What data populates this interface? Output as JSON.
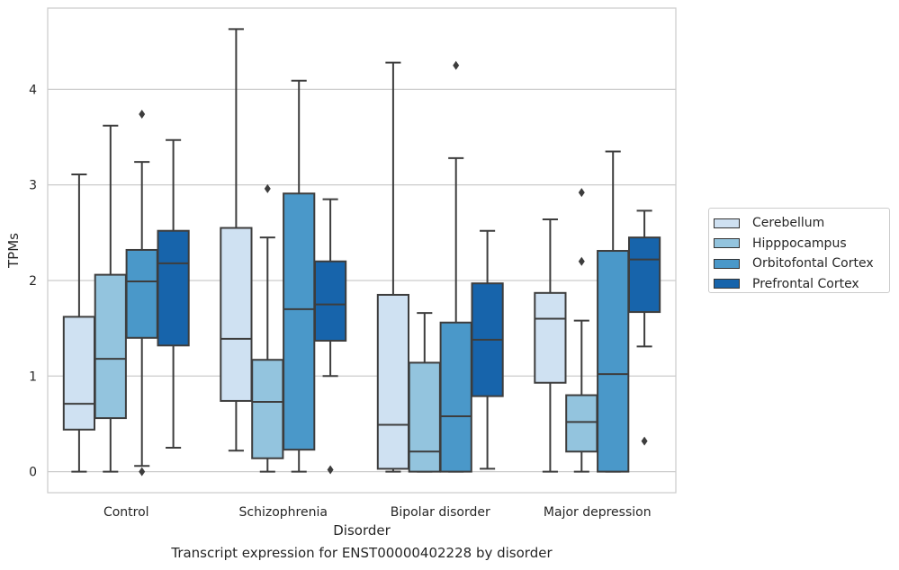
{
  "chart_data": {
    "type": "box",
    "xlabel": "Disorder",
    "ylabel": "TPMs",
    "ylim": [
      -0.22,
      4.85
    ],
    "yticks": [
      0,
      1,
      2,
      3,
      4
    ],
    "grid": "horizontal",
    "legend_position": "right",
    "categories": [
      "Control",
      "Schizophrenia",
      "Bipolar disorder",
      "Major depression"
    ],
    "series": [
      {
        "name": "Cerebellum",
        "color": "#cfe1f2",
        "boxes": [
          {
            "whisker_low": 0.0,
            "q1": 0.44,
            "median": 0.71,
            "q3": 1.62,
            "whisker_high": 3.11,
            "outliers": []
          },
          {
            "whisker_low": 0.22,
            "q1": 0.74,
            "median": 1.39,
            "q3": 2.55,
            "whisker_high": 4.63,
            "outliers": []
          },
          {
            "whisker_low": 0.0,
            "q1": 0.03,
            "median": 0.49,
            "q3": 1.85,
            "whisker_high": 4.28,
            "outliers": []
          },
          {
            "whisker_low": 0.0,
            "q1": 0.93,
            "median": 1.6,
            "q3": 1.87,
            "whisker_high": 2.64,
            "outliers": []
          }
        ]
      },
      {
        "name": "Hipppocampus",
        "color": "#93c4de",
        "boxes": [
          {
            "whisker_low": 0.0,
            "q1": 0.56,
            "median": 1.18,
            "q3": 2.06,
            "whisker_high": 3.62,
            "outliers": []
          },
          {
            "whisker_low": 0.0,
            "q1": 0.14,
            "median": 0.73,
            "q3": 1.17,
            "whisker_high": 2.45,
            "outliers": [
              2.96
            ]
          },
          {
            "whisker_low": 0.0,
            "q1": 0.0,
            "median": 0.21,
            "q3": 1.14,
            "whisker_high": 1.66,
            "outliers": []
          },
          {
            "whisker_low": 0.0,
            "q1": 0.21,
            "median": 0.52,
            "q3": 0.8,
            "whisker_high": 1.58,
            "outliers": [
              2.2,
              2.92
            ]
          }
        ]
      },
      {
        "name": "Orbitofontal Cortex",
        "color": "#4a98c9",
        "boxes": [
          {
            "whisker_low": 0.06,
            "q1": 1.4,
            "median": 1.99,
            "q3": 2.32,
            "whisker_high": 3.24,
            "outliers": [
              0.0,
              3.74
            ]
          },
          {
            "whisker_low": 0.0,
            "q1": 0.23,
            "median": 1.7,
            "q3": 2.91,
            "whisker_high": 4.09,
            "outliers": []
          },
          {
            "whisker_low": 0.0,
            "q1": 0.0,
            "median": 0.58,
            "q3": 1.56,
            "whisker_high": 3.28,
            "outliers": [
              4.25
            ]
          },
          {
            "whisker_low": 0.0,
            "q1": 0.0,
            "median": 1.02,
            "q3": 2.31,
            "whisker_high": 3.35,
            "outliers": []
          }
        ]
      },
      {
        "name": "Prefrontal Cortex",
        "color": "#1764ab",
        "boxes": [
          {
            "whisker_low": 0.25,
            "q1": 1.32,
            "median": 2.18,
            "q3": 2.52,
            "whisker_high": 3.47,
            "outliers": []
          },
          {
            "whisker_low": 1.0,
            "q1": 1.37,
            "median": 1.75,
            "q3": 2.2,
            "whisker_high": 2.85,
            "outliers": [
              0.02
            ]
          },
          {
            "whisker_low": 0.03,
            "q1": 0.79,
            "median": 1.38,
            "q3": 1.97,
            "whisker_high": 2.52,
            "outliers": []
          },
          {
            "whisker_low": 1.31,
            "q1": 1.67,
            "median": 2.22,
            "q3": 2.45,
            "whisker_high": 2.73,
            "outliers": [
              0.32
            ]
          }
        ]
      }
    ]
  },
  "caption": "Transcript expression for ENST00000402228 by disorder"
}
